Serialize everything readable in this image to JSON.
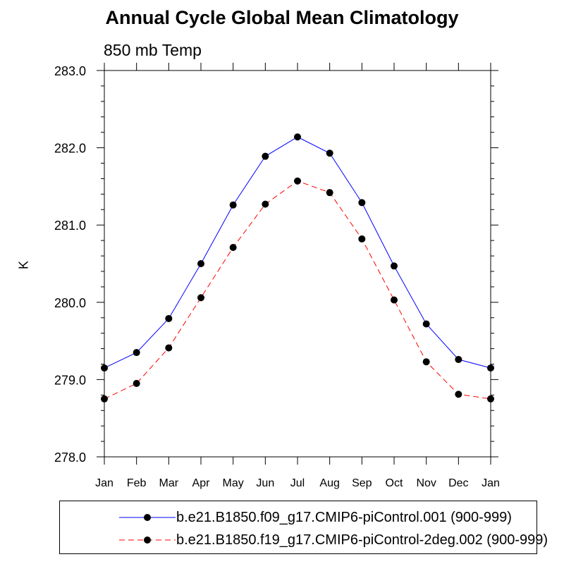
{
  "chart_data": {
    "type": "line",
    "title": "Annual Cycle Global Mean Climatology",
    "subtitle": "850 mb Temp",
    "ylabel": "K",
    "xlabel": "",
    "categories": [
      "Jan",
      "Feb",
      "Mar",
      "Apr",
      "May",
      "Jun",
      "Jul",
      "Aug",
      "Sep",
      "Oct",
      "Nov",
      "Dec",
      "Jan"
    ],
    "ylim": [
      278.0,
      283.0
    ],
    "yticks": [
      "278.0",
      "279.0",
      "280.0",
      "281.0",
      "282.0",
      "283.0"
    ],
    "grid": false,
    "legend_position": "bottom",
    "series": [
      {
        "name": "b.e21.B1850.f09_g17.CMIP6-piControl.001 (900-999)",
        "color": "#0000ff",
        "line_style": "solid",
        "marker": "filled-circle",
        "values": [
          279.15,
          279.35,
          279.79,
          280.5,
          281.26,
          281.89,
          282.14,
          281.93,
          281.29,
          280.47,
          279.72,
          279.26,
          279.15
        ]
      },
      {
        "name": "b.e21.B1850.f19_g17.CMIP6-piControl-2deg.002 (900-999)",
        "color": "#ff0000",
        "line_style": "dashed",
        "marker": "filled-circle",
        "values": [
          278.75,
          278.95,
          279.41,
          280.06,
          280.71,
          281.27,
          281.57,
          281.42,
          280.82,
          280.03,
          279.23,
          278.81,
          278.75
        ]
      }
    ]
  }
}
